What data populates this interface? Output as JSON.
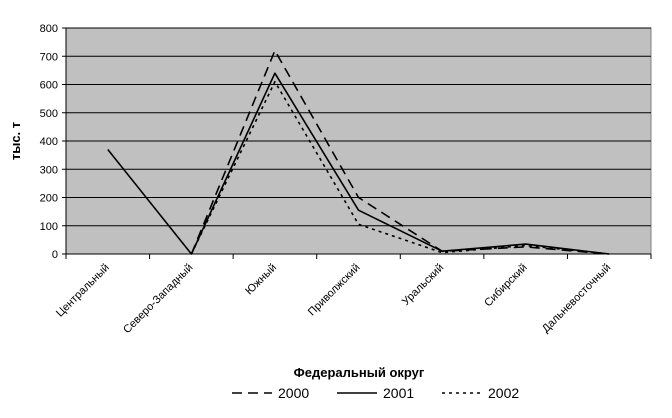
{
  "chart_data": {
    "type": "line",
    "xlabel": "Федеральный округ",
    "ylabel": "тыс. т",
    "ylim": [
      0,
      800
    ],
    "yticks": [
      0,
      100,
      200,
      300,
      400,
      500,
      600,
      700,
      800
    ],
    "categories": [
      "Центральный",
      "Северо-Западный",
      "Южный",
      "Приволжский",
      "Уральский",
      "Сибирский",
      "Дальневосточный"
    ],
    "series": [
      {
        "name": "2000",
        "values": [
          null,
          0,
          720,
          200,
          10,
          25,
          0
        ],
        "dash": "dashed"
      },
      {
        "name": "2001",
        "values": [
          370,
          0,
          640,
          155,
          10,
          35,
          0
        ],
        "dash": "solid"
      },
      {
        "name": "2002",
        "values": [
          null,
          0,
          610,
          105,
          5,
          30,
          0
        ],
        "dash": "dotted"
      }
    ],
    "grid": true,
    "plot_background": "#c0c0c0",
    "line_color": "#000000",
    "legend_position": "bottom"
  }
}
